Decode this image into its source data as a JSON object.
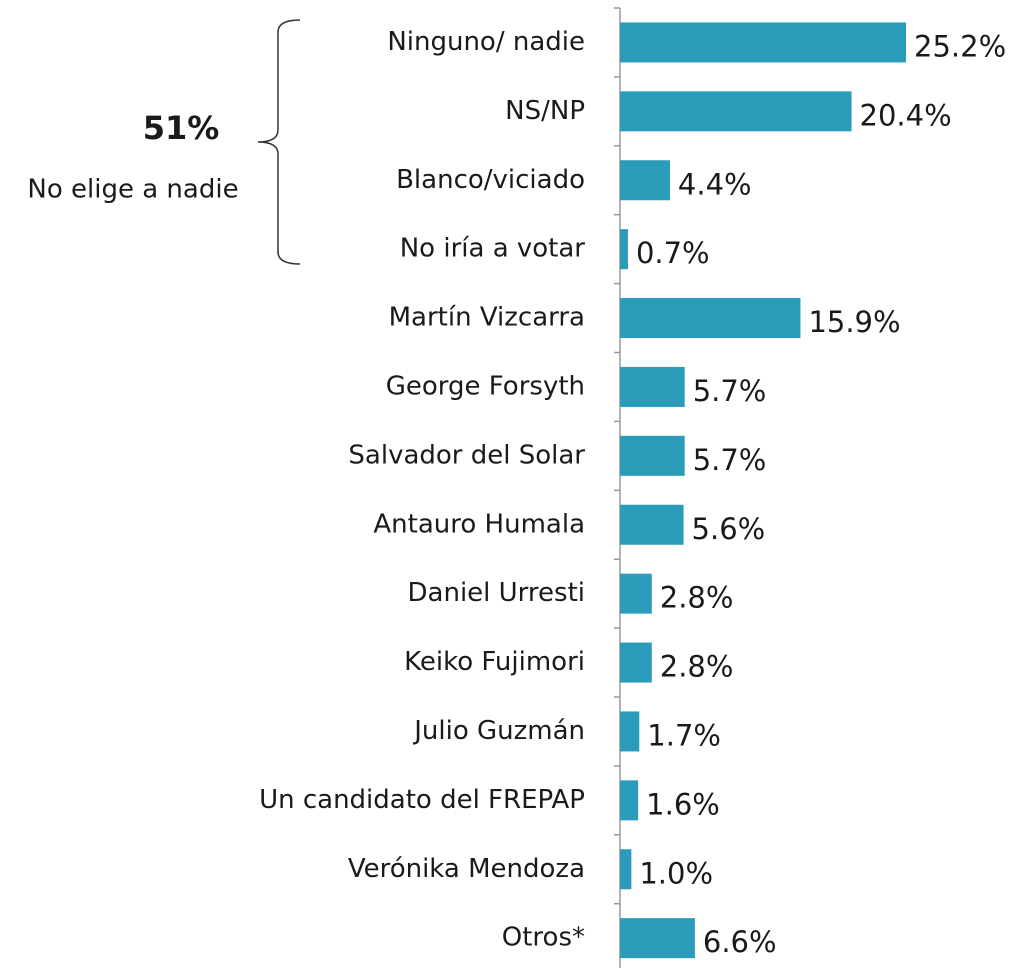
{
  "chart_data": {
    "type": "barh",
    "categories": [
      "Ninguno/ nadie",
      "NS/NP",
      "Blanco/viciado",
      "No iría a votar",
      "Martín Vizcarra",
      "George Forsyth",
      "Salvador del Solar",
      "Antauro Humala",
      "Daniel Urresti",
      "Keiko Fujimori",
      "Julio Guzmán",
      "Un candidato del FREPAP",
      "Verónika Mendoza",
      "Otros*"
    ],
    "values": [
      25.2,
      20.4,
      4.4,
      0.7,
      15.9,
      5.7,
      5.7,
      5.6,
      2.8,
      2.8,
      1.7,
      1.6,
      1.0,
      6.6
    ],
    "value_labels": [
      "25.2%",
      "20.4%",
      "4.4%",
      "0.7%",
      "15.9%",
      "5.7%",
      "5.7%",
      "5.6%",
      "2.8%",
      "2.8%",
      "1.7%",
      "1.6%",
      "1.0%",
      "6.6%"
    ],
    "color": "#2a9bb8",
    "annotations": [
      "51%",
      "No elige a nadie"
    ]
  }
}
